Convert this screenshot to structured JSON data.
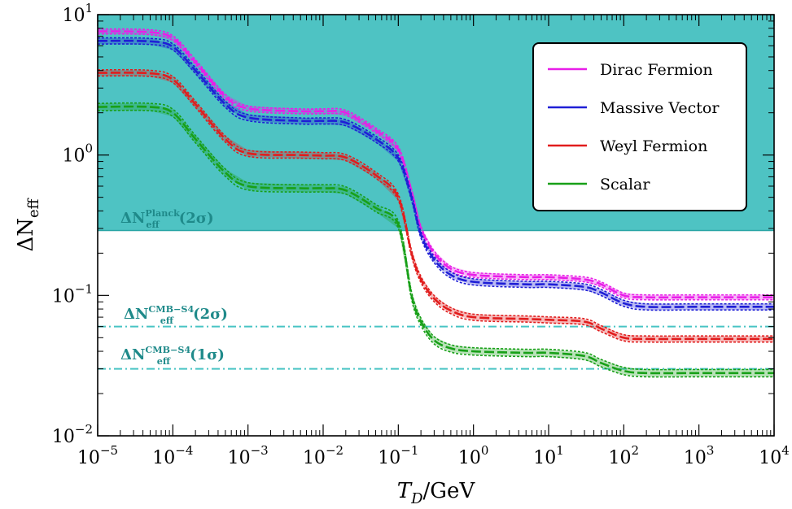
{
  "chart_data": {
    "type": "line",
    "xlabel": "T_D/GeV",
    "ylabel": "ΔN_eff",
    "x_scale": "log",
    "y_scale": "log",
    "xlim": [
      1e-05,
      10000
    ],
    "ylim": [
      0.01,
      10
    ],
    "x_ticks": [
      {
        "base": "10",
        "exp": "−5"
      },
      {
        "base": "10",
        "exp": "−4"
      },
      {
        "base": "10",
        "exp": "−3"
      },
      {
        "base": "10",
        "exp": "−2"
      },
      {
        "base": "10",
        "exp": "−1"
      },
      {
        "base": "10",
        "exp": "0"
      },
      {
        "base": "10",
        "exp": "1"
      },
      {
        "base": "10",
        "exp": "2"
      },
      {
        "base": "10",
        "exp": "3"
      },
      {
        "base": "10",
        "exp": "4"
      }
    ],
    "y_ticks": [
      {
        "base": "10",
        "exp": "−2",
        "value": 0.01
      },
      {
        "base": "10",
        "exp": "−1",
        "value": 0.1
      },
      {
        "base": "10",
        "exp": "0",
        "value": 1
      },
      {
        "base": "10",
        "exp": "1",
        "value": 10
      }
    ],
    "x_tick_log_values": [
      -5,
      -4,
      -3,
      -2,
      -1,
      0,
      1,
      2,
      3,
      4
    ],
    "grid": false,
    "legend_position": "top-right",
    "shaded_region": {
      "label": {
        "main": "ΔN",
        "sub": "eff",
        "sup": "Planck",
        "suffix": "(2σ)"
      },
      "y_from": 0.29,
      "y_to": 10,
      "color": "#4ec3c3"
    },
    "reference_lines": [
      {
        "label": {
          "main": "ΔN",
          "sub": "eff",
          "sup": "CMB−S4",
          "suffix": "(2σ)"
        },
        "y": 0.06,
        "color": "#48c4c4"
      },
      {
        "label": {
          "main": "ΔN",
          "sub": "eff",
          "sup": "CMB−S4",
          "suffix": "(1σ)"
        },
        "y": 0.03,
        "color": "#48c4c4"
      }
    ],
    "x": [
      1e-05,
      5e-05,
      0.0001,
      0.0002,
      0.0005,
      0.001,
      0.005,
      0.01,
      0.02,
      0.05,
      0.1,
      0.15,
      0.2,
      0.3,
      0.5,
      1,
      5,
      10,
      30,
      50,
      100,
      200,
      1000,
      10000
    ],
    "series": [
      {
        "name": "Dirac Fermion",
        "color": "#e81ee8",
        "values": [
          7.6,
          7.5,
          6.8,
          4.6,
          2.6,
          2.15,
          2.05,
          2.05,
          2.0,
          1.5,
          1.1,
          0.55,
          0.3,
          0.2,
          0.155,
          0.14,
          0.135,
          0.135,
          0.13,
          0.12,
          0.1,
          0.097,
          0.097,
          0.097
        ],
        "band": 0.04
      },
      {
        "name": "Massive Vector",
        "color": "#1f1fd6",
        "values": [
          6.5,
          6.45,
          5.9,
          4.0,
          2.3,
          1.85,
          1.75,
          1.75,
          1.7,
          1.3,
          0.95,
          0.5,
          0.27,
          0.18,
          0.14,
          0.125,
          0.12,
          0.12,
          0.115,
          0.105,
          0.088,
          0.083,
          0.083,
          0.083
        ],
        "band": 0.05
      },
      {
        "name": "Weyl Fermion",
        "color": "#e11d1d",
        "values": [
          3.85,
          3.82,
          3.45,
          2.3,
          1.3,
          1.03,
          1.0,
          0.99,
          0.96,
          0.72,
          0.5,
          0.2,
          0.13,
          0.095,
          0.078,
          0.07,
          0.068,
          0.067,
          0.065,
          0.058,
          0.05,
          0.049,
          0.049,
          0.049
        ],
        "band": 0.05
      },
      {
        "name": "Scalar",
        "color": "#18a018",
        "values": [
          2.2,
          2.2,
          2.0,
          1.3,
          0.75,
          0.6,
          0.58,
          0.58,
          0.56,
          0.42,
          0.32,
          0.1,
          0.065,
          0.048,
          0.042,
          0.04,
          0.039,
          0.039,
          0.037,
          0.033,
          0.029,
          0.028,
          0.028,
          0.028
        ],
        "band": 0.06
      }
    ]
  }
}
